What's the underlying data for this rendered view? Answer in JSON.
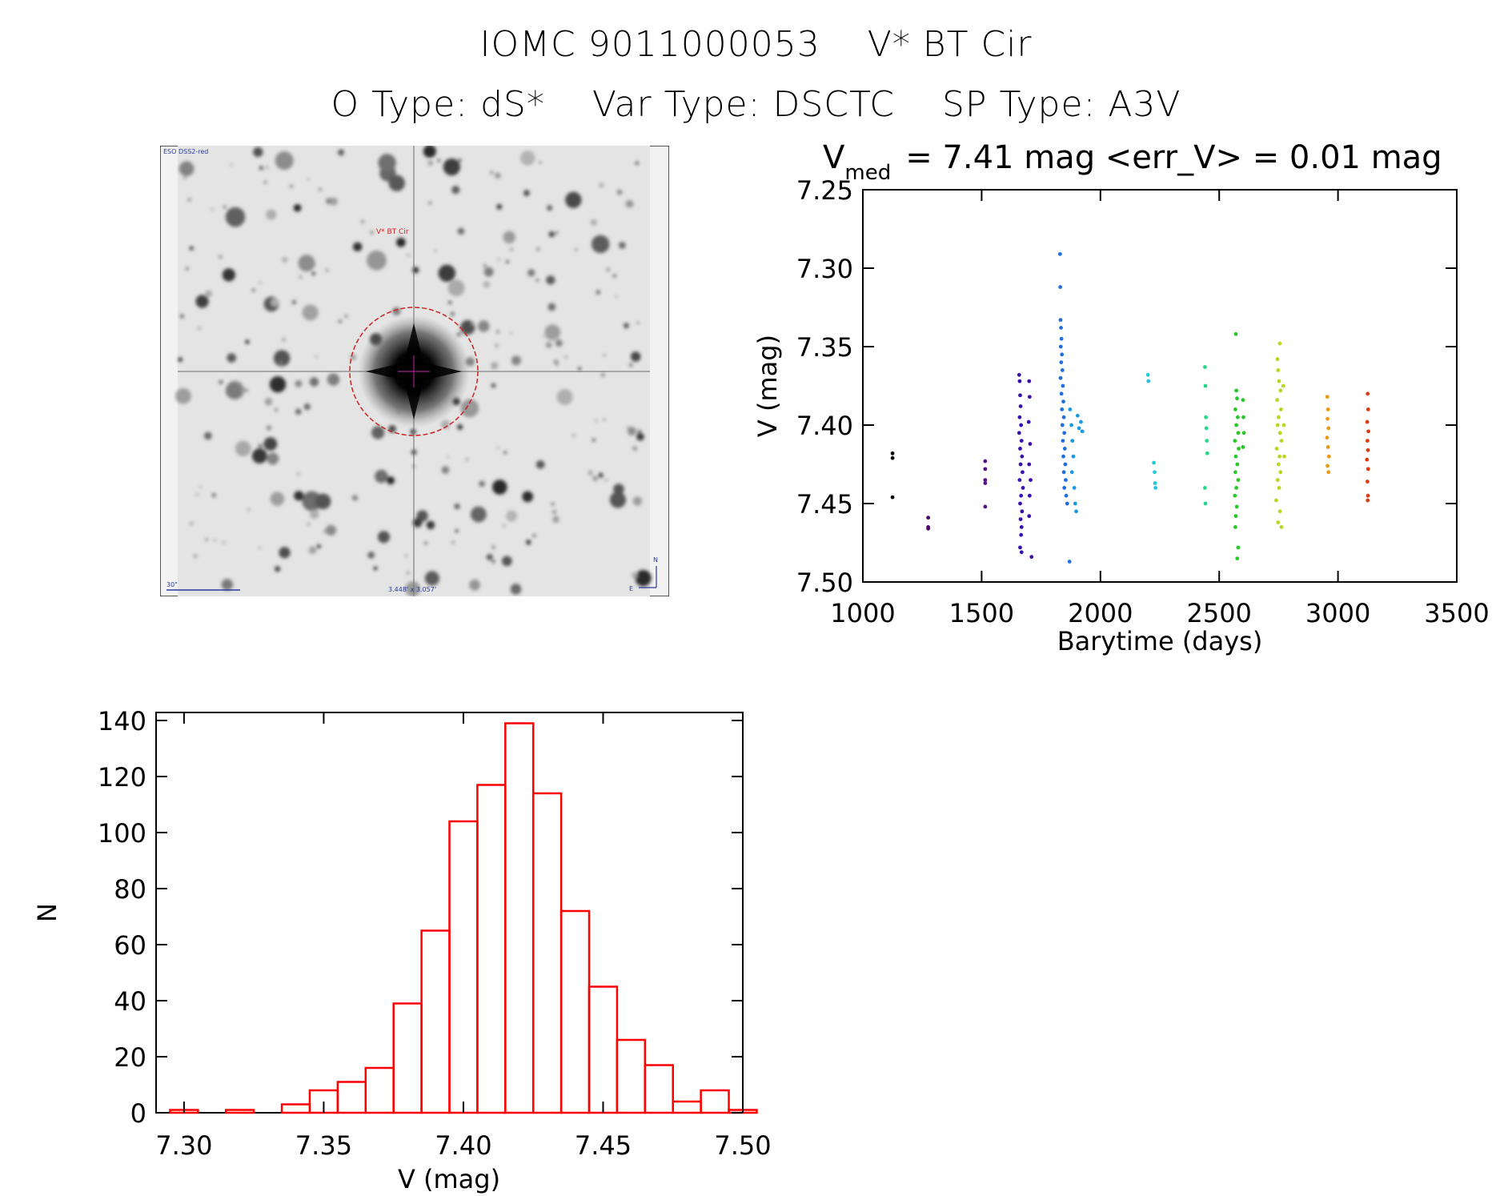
{
  "header": {
    "iomc_id": "IOMC 9011000053",
    "star_name": "V* BT Cir",
    "o_type": "O Type: dS*",
    "var_type": "Var Type: DSCTC",
    "sp_type": "SP Type: A3V"
  },
  "finder_chart": {
    "survey_label": "ESO DSS2-red",
    "target_label": "V* BT Cir",
    "scale_label": "30\"",
    "fov_label": "3.448' x 3.057'",
    "north_label": "N",
    "east_label": "E",
    "colors": {
      "circle": "#cc2222",
      "annotation": "#2a3aa0"
    }
  },
  "chart_data": [
    {
      "type": "scatter",
      "title_prefix": "V",
      "title_sub": "med",
      "title_rest": "= 7.41 mag <err_V> = 0.01 mag",
      "xlabel": "Barytime (days)",
      "ylabel": "V (mag)",
      "xlim": [
        1000,
        3500
      ],
      "ylim": [
        7.25,
        7.5
      ],
      "y_inverted": true,
      "xticks": [
        "1000",
        "1500",
        "2000",
        "2500",
        "3000",
        "3500"
      ],
      "yticks": [
        "7.25",
        "7.30",
        "7.35",
        "7.40",
        "7.45",
        "7.50"
      ],
      "groups": [
        {
          "color": "#000000",
          "points": [
            [
              1125,
              7.418
            ],
            [
              1125,
              7.421
            ],
            [
              1125,
              7.446
            ]
          ]
        },
        {
          "color": "#4b006e",
          "points": [
            [
              1275,
              7.459
            ],
            [
              1275,
              7.465
            ],
            [
              1275,
              7.466
            ]
          ]
        },
        {
          "color": "#55108a",
          "points": [
            [
              1515,
              7.423
            ],
            [
              1515,
              7.428
            ],
            [
              1515,
              7.435
            ],
            [
              1515,
              7.437
            ],
            [
              1515,
              7.452
            ]
          ]
        },
        {
          "color": "#3a0fb0",
          "points": [
            [
              1658,
              7.368
            ],
            [
              1660,
              7.372
            ],
            [
              1662,
              7.381
            ],
            [
              1664,
              7.388
            ],
            [
              1660,
              7.395
            ],
            [
              1666,
              7.4
            ],
            [
              1658,
              7.405
            ],
            [
              1668,
              7.41
            ],
            [
              1662,
              7.415
            ],
            [
              1670,
              7.42
            ],
            [
              1664,
              7.425
            ],
            [
              1672,
              7.43
            ],
            [
              1660,
              7.435
            ],
            [
              1674,
              7.44
            ],
            [
              1666,
              7.445
            ],
            [
              1662,
              7.45
            ],
            [
              1670,
              7.455
            ],
            [
              1664,
              7.46
            ],
            [
              1668,
              7.465
            ],
            [
              1666,
              7.47
            ],
            [
              1662,
              7.478
            ],
            [
              1668,
              7.481
            ],
            [
              1700,
              7.372
            ],
            [
              1702,
              7.382
            ],
            [
              1698,
              7.398
            ],
            [
              1704,
              7.412
            ],
            [
              1700,
              7.425
            ],
            [
              1706,
              7.435
            ],
            [
              1702,
              7.445
            ],
            [
              1700,
              7.458
            ],
            [
              1710,
              7.484
            ]
          ]
        },
        {
          "color": "#1f6fe0",
          "points": [
            [
              1830,
              7.291
            ],
            [
              1831,
              7.312
            ],
            [
              1832,
              7.333
            ],
            [
              1834,
              7.338
            ],
            [
              1836,
              7.345
            ],
            [
              1833,
              7.35
            ],
            [
              1838,
              7.355
            ],
            [
              1835,
              7.36
            ],
            [
              1840,
              7.365
            ],
            [
              1832,
              7.37
            ],
            [
              1842,
              7.375
            ],
            [
              1836,
              7.38
            ],
            [
              1844,
              7.385
            ],
            [
              1838,
              7.39
            ],
            [
              1846,
              7.395
            ],
            [
              1840,
              7.4
            ],
            [
              1848,
              7.405
            ],
            [
              1842,
              7.41
            ],
            [
              1850,
              7.415
            ],
            [
              1844,
              7.42
            ],
            [
              1852,
              7.425
            ],
            [
              1846,
              7.43
            ],
            [
              1854,
              7.435
            ],
            [
              1848,
              7.44
            ],
            [
              1856,
              7.445
            ],
            [
              1860,
              7.45
            ],
            [
              1870,
              7.487
            ]
          ]
        },
        {
          "color": "#1a9ae0",
          "points": [
            [
              1872,
              7.39
            ],
            [
              1878,
              7.4
            ],
            [
              1882,
              7.41
            ],
            [
              1886,
              7.42
            ],
            [
              1880,
              7.43
            ],
            [
              1890,
              7.44
            ],
            [
              1894,
              7.45
            ],
            [
              1898,
              7.455
            ],
            [
              1904,
              7.394
            ],
            [
              1910,
              7.402
            ],
            [
              1918,
              7.398
            ],
            [
              1924,
              7.404
            ]
          ]
        },
        {
          "color": "#20c8d8",
          "points": [
            [
              2200,
              7.368
            ],
            [
              2202,
              7.372
            ],
            [
              2225,
              7.424
            ],
            [
              2228,
              7.43
            ],
            [
              2230,
              7.437
            ],
            [
              2232,
              7.44
            ]
          ]
        },
        {
          "color": "#22d88a",
          "points": [
            [
              2440,
              7.363
            ],
            [
              2442,
              7.375
            ],
            [
              2444,
              7.395
            ],
            [
              2446,
              7.402
            ],
            [
              2448,
              7.41
            ],
            [
              2450,
              7.418
            ],
            [
              2440,
              7.44
            ],
            [
              2442,
              7.45
            ]
          ]
        },
        {
          "color": "#28c828",
          "points": [
            [
              2570,
              7.342
            ],
            [
              2572,
              7.378
            ],
            [
              2575,
              7.383
            ],
            [
              2568,
              7.39
            ],
            [
              2578,
              7.395
            ],
            [
              2572,
              7.4
            ],
            [
              2580,
              7.405
            ],
            [
              2566,
              7.41
            ],
            [
              2582,
              7.415
            ],
            [
              2570,
              7.42
            ],
            [
              2576,
              7.425
            ],
            [
              2568,
              7.43
            ],
            [
              2580,
              7.435
            ],
            [
              2572,
              7.44
            ],
            [
              2566,
              7.445
            ],
            [
              2574,
              7.452
            ],
            [
              2570,
              7.458
            ],
            [
              2568,
              7.465
            ],
            [
              2580,
              7.478
            ],
            [
              2576,
              7.485
            ],
            [
              2600,
              7.384
            ],
            [
              2602,
              7.395
            ],
            [
              2604,
              7.405
            ],
            [
              2600,
              7.414
            ]
          ]
        },
        {
          "color": "#b8d820",
          "points": [
            [
              2745,
              7.358
            ],
            [
              2755,
              7.348
            ],
            [
              2748,
              7.365
            ],
            [
              2752,
              7.372
            ],
            [
              2758,
              7.378
            ],
            [
              2744,
              7.384
            ],
            [
              2760,
              7.39
            ],
            [
              2750,
              7.395
            ],
            [
              2746,
              7.4
            ],
            [
              2756,
              7.405
            ],
            [
              2762,
              7.41
            ],
            [
              2742,
              7.415
            ],
            [
              2754,
              7.42
            ],
            [
              2750,
              7.425
            ],
            [
              2758,
              7.43
            ],
            [
              2746,
              7.435
            ],
            [
              2752,
              7.44
            ],
            [
              2740,
              7.448
            ],
            [
              2756,
              7.455
            ],
            [
              2748,
              7.462
            ],
            [
              2762,
              7.465
            ],
            [
              2770,
              7.375
            ],
            [
              2772,
              7.4
            ],
            [
              2774,
              7.42
            ]
          ]
        },
        {
          "color": "#e89a10",
          "points": [
            [
              2955,
              7.382
            ],
            [
              2958,
              7.39
            ],
            [
              2956,
              7.396
            ],
            [
              2960,
              7.402
            ],
            [
              2954,
              7.408
            ],
            [
              2958,
              7.414
            ],
            [
              2962,
              7.42
            ],
            [
              2956,
              7.426
            ],
            [
              2960,
              7.43
            ]
          ]
        },
        {
          "color": "#e03a10",
          "points": [
            [
              3125,
              7.38
            ],
            [
              3127,
              7.39
            ],
            [
              3123,
              7.398
            ],
            [
              3128,
              7.404
            ],
            [
              3124,
              7.41
            ],
            [
              3126,
              7.416
            ],
            [
              3122,
              7.422
            ],
            [
              3127,
              7.428
            ],
            [
              3124,
              7.436
            ],
            [
              3126,
              7.445
            ],
            [
              3125,
              7.448
            ]
          ]
        }
      ]
    },
    {
      "type": "bar",
      "xlabel": "V (mag)",
      "ylabel": "N",
      "xlim": [
        7.29,
        7.5
      ],
      "ylim": [
        0,
        140
      ],
      "xticks": [
        "7.30",
        "7.35",
        "7.40",
        "7.45",
        "7.50"
      ],
      "yticks": [
        "0",
        "20",
        "40",
        "60",
        "80",
        "100",
        "120",
        "140"
      ],
      "bin_width": 0.01,
      "bin_starts": [
        7.295,
        7.305,
        7.315,
        7.325,
        7.335,
        7.345,
        7.355,
        7.365,
        7.375,
        7.385,
        7.395,
        7.405,
        7.415,
        7.425,
        7.435,
        7.445,
        7.455,
        7.465,
        7.475,
        7.485,
        7.495
      ],
      "values": [
        1,
        0,
        1,
        0,
        3,
        8,
        11,
        16,
        39,
        65,
        104,
        117,
        139,
        114,
        72,
        45,
        26,
        17,
        4,
        8,
        1
      ],
      "color": "#ff0000"
    }
  ]
}
